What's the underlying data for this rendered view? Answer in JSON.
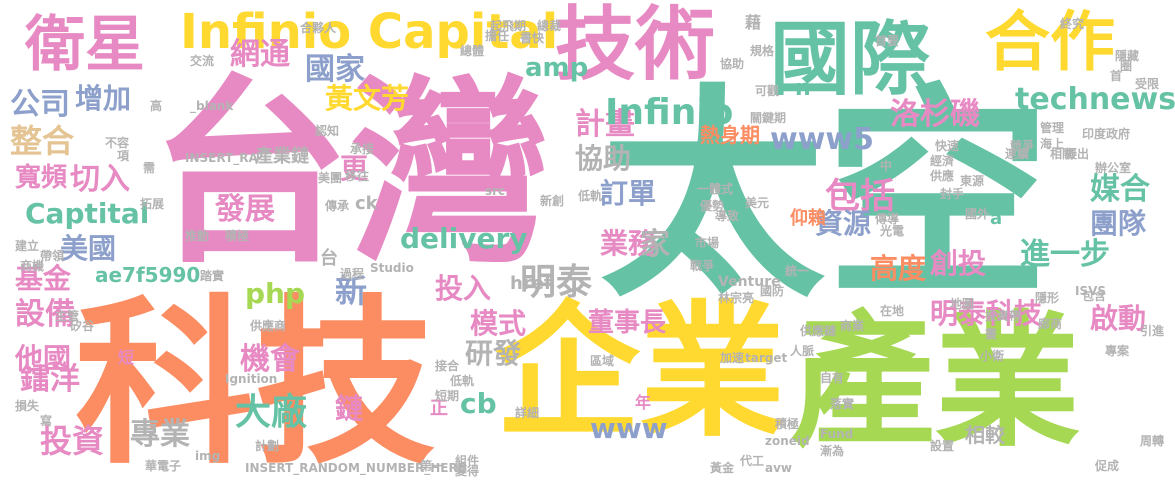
{
  "palette": {
    "pink": "#e78ac3",
    "teal": "#66c2a5",
    "orange": "#fc8d62",
    "green": "#a6d854",
    "yellow": "#ffd92f",
    "tan": "#e5c494",
    "blue": "#8da0cb",
    "gray": "#b3b3b3"
  },
  "words": [
    {
      "text": "台灣",
      "color": "pink"
    },
    {
      "text": "太空",
      "color": "teal"
    },
    {
      "text": "科技",
      "color": "orange"
    },
    {
      "text": "企業",
      "color": "yellow"
    },
    {
      "text": "產業",
      "color": "green"
    },
    {
      "text": "國際",
      "color": "teal"
    },
    {
      "text": "技術",
      "color": "pink"
    },
    {
      "text": "合作",
      "color": "yellow"
    },
    {
      "text": "衛星",
      "color": "pink"
    },
    {
      "text": "Infinio Capital",
      "color": "yellow"
    },
    {
      "text": "網通",
      "color": "pink"
    },
    {
      "text": "國家",
      "color": "blue"
    },
    {
      "text": "amp",
      "color": "teal"
    },
    {
      "text": "黃文芳",
      "color": "yellow"
    },
    {
      "text": "technews",
      "color": "teal"
    },
    {
      "text": "公司",
      "color": "blue"
    },
    {
      "text": "增加",
      "color": "blue"
    },
    {
      "text": "整合",
      "color": "tan"
    },
    {
      "text": "計畫",
      "color": "pink"
    },
    {
      "text": "Infinio",
      "color": "teal"
    },
    {
      "text": "洛杉磯",
      "color": "pink"
    },
    {
      "text": "www5",
      "color": "blue"
    },
    {
      "text": "熱身期",
      "color": "orange"
    },
    {
      "text": "協助",
      "color": "gray"
    },
    {
      "text": "更",
      "color": "pink"
    },
    {
      "text": "寬頻",
      "color": "pink"
    },
    {
      "text": "切入",
      "color": "pink"
    },
    {
      "text": "發展",
      "color": "pink"
    },
    {
      "text": "訂單",
      "color": "blue"
    },
    {
      "text": "包括",
      "color": "pink"
    },
    {
      "text": "tw",
      "color": "teal"
    },
    {
      "text": "媒合",
      "color": "teal"
    },
    {
      "text": "團隊",
      "color": "blue"
    },
    {
      "text": "Captital",
      "color": "teal"
    },
    {
      "text": "資源",
      "color": "blue"
    },
    {
      "text": "美國",
      "color": "blue"
    },
    {
      "text": "delivery",
      "color": "teal"
    },
    {
      "text": "業務",
      "color": "pink"
    },
    {
      "text": "家",
      "color": "gray"
    },
    {
      "text": "進一步",
      "color": "teal"
    },
    {
      "text": "基金",
      "color": "pink"
    },
    {
      "text": "明泰",
      "color": "gray"
    },
    {
      "text": "高度",
      "color": "orange"
    },
    {
      "text": "創投",
      "color": "pink"
    },
    {
      "text": "ae7f5990",
      "color": "teal"
    },
    {
      "text": "php",
      "color": "green"
    },
    {
      "text": "投入",
      "color": "pink"
    },
    {
      "text": "新",
      "color": "blue"
    },
    {
      "text": "明泰科技",
      "color": "pink"
    },
    {
      "text": "啟動",
      "color": "pink"
    },
    {
      "text": "設備",
      "color": "pink"
    },
    {
      "text": "他國",
      "color": "pink"
    },
    {
      "text": "模式",
      "color": "pink"
    },
    {
      "text": "董事長",
      "color": "pink"
    },
    {
      "text": "機會",
      "color": "pink"
    },
    {
      "text": "研發",
      "color": "gray"
    },
    {
      "text": "鐳洋",
      "color": "pink"
    },
    {
      "text": "cb",
      "color": "teal"
    },
    {
      "text": "大廠",
      "color": "teal"
    },
    {
      "text": "鏈",
      "color": "pink"
    },
    {
      "text": "www",
      "color": "blue"
    },
    {
      "text": "專業",
      "color": "gray"
    },
    {
      "text": "投資",
      "color": "pink"
    },
    {
      "text": "相較",
      "color": "gray"
    },
    {
      "text": "href",
      "color": "gray"
    },
    {
      "text": "產業鏈",
      "color": "gray"
    },
    {
      "text": "ck",
      "color": "gray"
    },
    {
      "text": "n",
      "color": "teal"
    },
    {
      "text": "a",
      "color": "teal"
    },
    {
      "text": "Studio",
      "color": "gray"
    },
    {
      "text": "Venture",
      "color": "gray"
    },
    {
      "text": "Fund",
      "color": "gray"
    },
    {
      "text": "zoneid",
      "color": "gray"
    },
    {
      "text": "img",
      "color": "gray"
    },
    {
      "text": "Ignition",
      "color": "gray"
    },
    {
      "text": "INSERT_RA",
      "color": "gray"
    },
    {
      "text": "INSERT_RANDOM_NUMBER_HERE",
      "color": "gray"
    },
    {
      "text": "_blank",
      "color": "gray"
    },
    {
      "text": "target",
      "color": "gray"
    },
    {
      "text": "src",
      "color": "gray"
    },
    {
      "text": "avw",
      "color": "gray"
    },
    {
      "text": "ISVS",
      "color": "gray"
    },
    {
      "text": "藉",
      "color": "gray"
    },
    {
      "text": "正",
      "color": "pink"
    },
    {
      "text": "年",
      "color": "pink"
    },
    {
      "text": "台",
      "color": "gray"
    },
    {
      "text": "短",
      "color": "pink"
    },
    {
      "text": "交流",
      "color": "gray"
    },
    {
      "text": "高",
      "color": "gray"
    },
    {
      "text": "不容",
      "color": "gray"
    },
    {
      "text": "項",
      "color": "gray"
    },
    {
      "text": "需",
      "color": "gray"
    },
    {
      "text": "拓展",
      "color": "gray"
    },
    {
      "text": "建立",
      "color": "gray"
    },
    {
      "text": "商機",
      "color": "gray"
    },
    {
      "text": "主管",
      "color": "gray"
    },
    {
      "text": "矽谷",
      "color": "gray"
    },
    {
      "text": "損失",
      "color": "gray"
    },
    {
      "text": "寫",
      "color": "gray"
    },
    {
      "text": "華電子",
      "color": "gray"
    },
    {
      "text": "計劃",
      "color": "gray"
    },
    {
      "text": "規格",
      "color": "gray"
    },
    {
      "text": "協助",
      "color": "gray"
    },
    {
      "text": "首要",
      "color": "gray"
    },
    {
      "text": "終究",
      "color": "gray"
    },
    {
      "text": "受限",
      "color": "gray"
    },
    {
      "text": "印度政府",
      "color": "gray"
    },
    {
      "text": "辦公室",
      "color": "gray"
    },
    {
      "text": "國外",
      "color": "gray"
    },
    {
      "text": "加速",
      "color": "gray"
    },
    {
      "text": "自有",
      "color": "gray"
    },
    {
      "text": "促成",
      "color": "gray"
    },
    {
      "text": "周轉",
      "color": "gray"
    },
    {
      "text": "供應鏈",
      "color": "gray"
    },
    {
      "text": "在地",
      "color": "gray"
    },
    {
      "text": "投資帶",
      "color": "gray"
    },
    {
      "text": "引進",
      "color": "gray"
    },
    {
      "text": "仰賴",
      "color": "orange"
    },
    {
      "text": "人脈",
      "color": "gray"
    },
    {
      "text": "美元",
      "color": "gray"
    },
    {
      "text": "國防",
      "color": "gray"
    },
    {
      "text": "林宗亮",
      "color": "gray"
    },
    {
      "text": "統一",
      "color": "gray"
    },
    {
      "text": "隱形",
      "color": "gray"
    },
    {
      "text": "包含",
      "color": "gray"
    },
    {
      "text": "接合",
      "color": "gray"
    },
    {
      "text": "低軌",
      "color": "gray"
    },
    {
      "text": "短期",
      "color": "gray"
    },
    {
      "text": "詳細",
      "color": "gray"
    },
    {
      "text": "區域",
      "color": "gray"
    },
    {
      "text": "組件",
      "color": "gray"
    },
    {
      "text": "變得",
      "color": "gray"
    },
    {
      "text": "代工",
      "color": "gray"
    },
    {
      "text": "黃金",
      "color": "gray"
    },
    {
      "text": "設置",
      "color": "gray"
    },
    {
      "text": "漸為",
      "color": "gray"
    },
    {
      "text": "供應商",
      "color": "gray"
    },
    {
      "text": "過程",
      "color": "gray"
    },
    {
      "text": "第一",
      "color": "gray"
    },
    {
      "text": "踏實",
      "color": "gray"
    },
    {
      "text": "可觀",
      "color": "gray"
    },
    {
      "text": "合夥人",
      "color": "gray"
    },
    {
      "text": "總體",
      "color": "gray"
    },
    {
      "text": "擔任",
      "color": "gray"
    },
    {
      "text": "總裁",
      "color": "gray"
    },
    {
      "text": "起飛期",
      "color": "gray"
    },
    {
      "text": "書快",
      "color": "gray"
    },
    {
      "text": "移往",
      "color": "gray"
    },
    {
      "text": "承接",
      "color": "gray"
    },
    {
      "text": "關鍵期",
      "color": "gray"
    },
    {
      "text": "美團",
      "color": "gray"
    },
    {
      "text": "傳承",
      "color": "gray"
    },
    {
      "text": "新創",
      "color": "gray"
    },
    {
      "text": "海上",
      "color": "gray"
    },
    {
      "text": "擬出",
      "color": "gray"
    },
    {
      "text": "管理",
      "color": "gray"
    },
    {
      "text": "連續",
      "color": "gray"
    },
    {
      "text": "經濟",
      "color": "gray"
    },
    {
      "text": "供應",
      "color": "gray"
    },
    {
      "text": "一體式",
      "color": "gray"
    },
    {
      "text": "優勢",
      "color": "gray"
    },
    {
      "text": "導致",
      "color": "gray"
    },
    {
      "text": "低軌",
      "color": "gray"
    },
    {
      "text": "競爭",
      "color": "gray"
    },
    {
      "text": "快速",
      "color": "gray"
    },
    {
      "text": "推動",
      "color": "gray"
    },
    {
      "text": "積極",
      "color": "gray"
    },
    {
      "text": "帶領",
      "color": "gray"
    },
    {
      "text": "戰爭",
      "color": "gray"
    },
    {
      "text": "光電",
      "color": "gray"
    },
    {
      "text": "傳導",
      "color": "gray"
    },
    {
      "text": "市場",
      "color": "gray"
    },
    {
      "text": "中",
      "color": "gray"
    },
    {
      "text": "商業",
      "color": "gray"
    },
    {
      "text": "畫",
      "color": "gray"
    },
    {
      "text": "小衛",
      "color": "gray"
    },
    {
      "text": "首",
      "color": "gray"
    },
    {
      "text": "圈",
      "color": "gray"
    },
    {
      "text": "隱藏",
      "color": "gray"
    },
    {
      "text": "相關",
      "color": "gray"
    },
    {
      "text": "廊商",
      "color": "gray"
    },
    {
      "text": "專案",
      "color": "gray"
    },
    {
      "text": "認知",
      "color": "gray"
    },
    {
      "text": "封手",
      "color": "gray"
    },
    {
      "text": "東源",
      "color": "gray"
    },
    {
      "text": "積極",
      "color": "gray"
    },
    {
      "text": "落實",
      "color": "gray"
    },
    {
      "text": "地圖",
      "color": "gray"
    },
    {
      "text": "複雜",
      "color": "gray"
    },
    {
      "text": "落實",
      "color": "gray"
    }
  ]
}
